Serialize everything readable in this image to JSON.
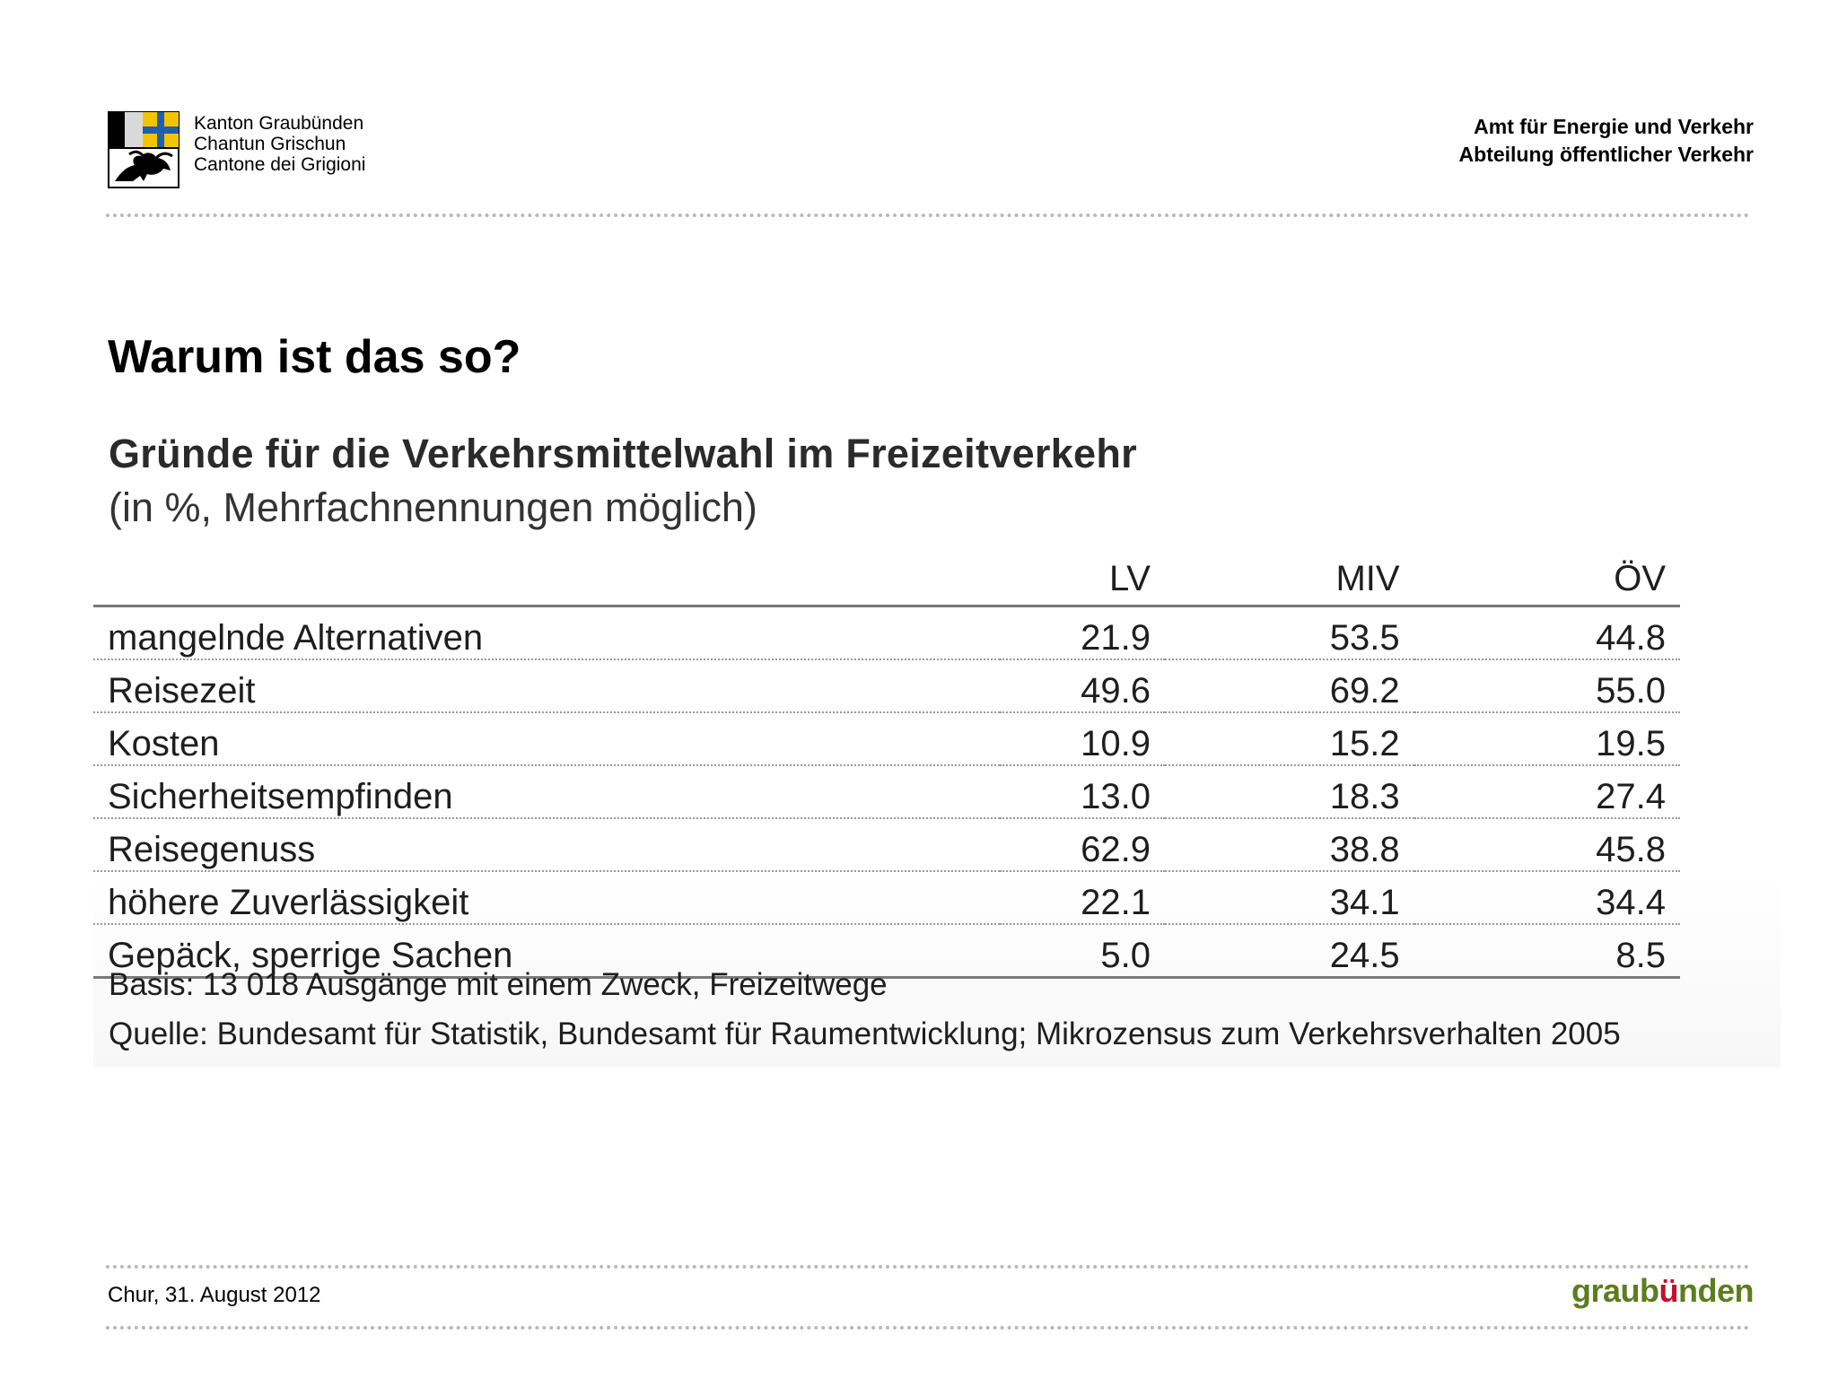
{
  "header": {
    "canton_lines": [
      "Kanton Graubünden",
      "Chantun Grischun",
      "Cantone dei Grigioni"
    ],
    "department_lines": [
      "Amt für Energie und Verkehr",
      "Abteilung öffentlicher Verkehr"
    ]
  },
  "slide": {
    "title": "Warum ist das so?"
  },
  "table": {
    "title": "Gründe für die Verkehrsmittelwahl im Freizeitverkehr",
    "subtitle": "(in %, Mehrfachnennungen möglich)",
    "columns": [
      "LV",
      "MIV",
      "ÖV"
    ],
    "rows": [
      {
        "label": "mangelnde Alternativen",
        "values": [
          "21.9",
          "53.5",
          "44.8"
        ]
      },
      {
        "label": "Reisezeit",
        "values": [
          "49.6",
          "69.2",
          "55.0"
        ]
      },
      {
        "label": "Kosten",
        "values": [
          "10.9",
          "15.2",
          "19.5"
        ]
      },
      {
        "label": "Sicherheitsempfinden",
        "values": [
          "13.0",
          "18.3",
          "27.4"
        ]
      },
      {
        "label": "Reisegenuss",
        "values": [
          "62.9",
          "38.8",
          "45.8"
        ]
      },
      {
        "label": "höhere Zuverlässigkeit",
        "values": [
          "22.1",
          "34.1",
          "34.4"
        ]
      },
      {
        "label": "Gepäck, sperrige Sachen",
        "values": [
          "5.0",
          "24.5",
          "8.5"
        ]
      }
    ],
    "basis": "Basis: 13 018 Ausgänge mit einem Zweck, Freizeitwege",
    "source": "Quelle: Bundesamt für Statistik, Bundesamt für Raumentwicklung; Mikrozensus zum Verkehrsverhalten 2005"
  },
  "footer": {
    "date": "Chur, 31. August 2012",
    "brand_start": "graub",
    "brand_mid": "ü",
    "brand_end": "nden"
  },
  "colors": {
    "brand_green": "#5c7d1e",
    "brand_red": "#c0122a",
    "dotted_rule": "#b9b9b9"
  }
}
